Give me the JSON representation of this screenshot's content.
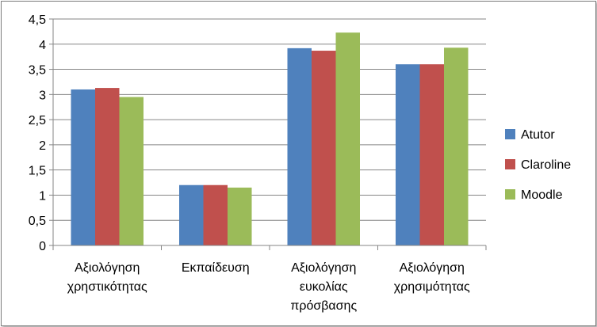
{
  "chart_data": {
    "type": "bar",
    "title": "",
    "xlabel": "",
    "ylabel": "",
    "categories": [
      [
        "Αξιολόγηση",
        "χρηστικότητας"
      ],
      [
        "Εκπαίδευση"
      ],
      [
        "Αξιολόγηση",
        "ευκολίας",
        "πρόσβασης"
      ],
      [
        "Αξιολόγηση",
        "χρησιμότητας"
      ]
    ],
    "series": [
      {
        "name": "Atutor",
        "color": "#4f81bd",
        "values": [
          3.1,
          1.2,
          3.92,
          3.6
        ]
      },
      {
        "name": "Claroline",
        "color": "#c0504d",
        "values": [
          3.13,
          1.2,
          3.87,
          3.6
        ]
      },
      {
        "name": "Moodle",
        "color": "#9bbb59",
        "values": [
          2.95,
          1.15,
          4.23,
          3.93
        ]
      }
    ],
    "ylim": [
      0,
      4.5
    ],
    "yticks": [
      "0",
      "0,5",
      "1",
      "1,5",
      "2",
      "2,5",
      "3",
      "3,5",
      "4",
      "4,5"
    ],
    "grid": true,
    "legend_position": "right"
  }
}
